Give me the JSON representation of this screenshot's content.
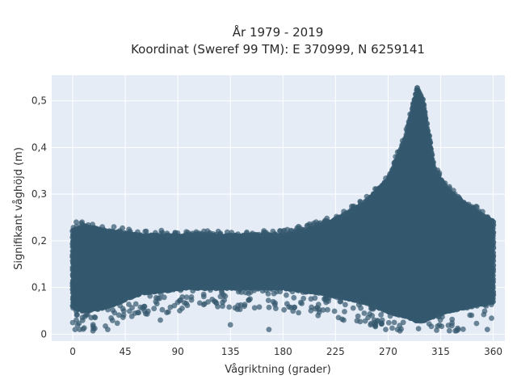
{
  "chart_data": {
    "type": "scatter",
    "title_line1": "År 1979 - 2019",
    "title_line2": "Koordinat (Sweref 99 TM): E 370999, N 6259141",
    "xlabel": "Vågriktning (grader)",
    "ylabel": "Signifikant våghöjd (m)",
    "xlim": [
      -18,
      370
    ],
    "ylim": [
      -0.015,
      0.555
    ],
    "x_ticks": [
      0,
      45,
      90,
      135,
      180,
      225,
      270,
      315,
      360
    ],
    "y_ticks": [
      0,
      0.1,
      0.2,
      0.3,
      0.4,
      0.5
    ],
    "y_tick_labels": [
      "0",
      "0,1",
      "0,2",
      "0,3",
      "0,4",
      "0,5"
    ],
    "grid": true,
    "marker_color": "#34586e",
    "background_color": "#e5ecf6",
    "envelope": [
      {
        "x": 0,
        "low": 0.06,
        "high": 0.22
      },
      {
        "x": 10,
        "low": 0.05,
        "high": 0.23
      },
      {
        "x": 30,
        "low": 0.06,
        "high": 0.22
      },
      {
        "x": 60,
        "low": 0.09,
        "high": 0.21
      },
      {
        "x": 100,
        "low": 0.1,
        "high": 0.21
      },
      {
        "x": 150,
        "low": 0.1,
        "high": 0.21
      },
      {
        "x": 180,
        "low": 0.1,
        "high": 0.21
      },
      {
        "x": 210,
        "low": 0.09,
        "high": 0.23
      },
      {
        "x": 230,
        "low": 0.08,
        "high": 0.25
      },
      {
        "x": 250,
        "low": 0.07,
        "high": 0.28
      },
      {
        "x": 270,
        "low": 0.05,
        "high": 0.33
      },
      {
        "x": 285,
        "low": 0.04,
        "high": 0.42
      },
      {
        "x": 295,
        "low": 0.03,
        "high": 0.53
      },
      {
        "x": 300,
        "low": 0.03,
        "high": 0.5
      },
      {
        "x": 310,
        "low": 0.04,
        "high": 0.35
      },
      {
        "x": 320,
        "low": 0.05,
        "high": 0.31
      },
      {
        "x": 340,
        "low": 0.06,
        "high": 0.27
      },
      {
        "x": 360,
        "low": 0.07,
        "high": 0.24
      }
    ],
    "outliers": [
      {
        "x": 2,
        "y": 0.01
      },
      {
        "x": 6,
        "y": 0.01
      },
      {
        "x": 3,
        "y": 0.03
      },
      {
        "x": 30,
        "y": 0.01
      },
      {
        "x": 75,
        "y": 0.03
      },
      {
        "x": 135,
        "y": 0.02
      },
      {
        "x": 168,
        "y": 0.01
      },
      {
        "x": 210,
        "y": 0.04
      },
      {
        "x": 232,
        "y": 0.03
      },
      {
        "x": 255,
        "y": 0.02
      },
      {
        "x": 265,
        "y": 0.03
      },
      {
        "x": 268,
        "y": 0.01
      },
      {
        "x": 278,
        "y": 0.01
      },
      {
        "x": 330,
        "y": 0.01
      },
      {
        "x": 355,
        "y": 0.01
      },
      {
        "x": 3,
        "y": 0.24
      },
      {
        "x": 8,
        "y": 0.24
      }
    ]
  }
}
